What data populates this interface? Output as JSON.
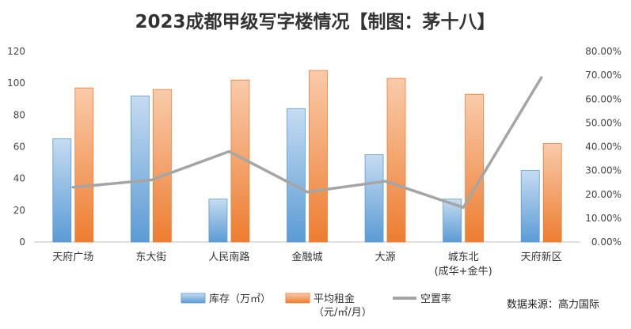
{
  "chart_data": {
    "type": "bar",
    "title": "2023成都甲级写字楼情况【制图：茅十八】",
    "categories": [
      "天府广场",
      "东大街",
      "人民南路",
      "金融城",
      "大源",
      "城东北",
      "天府新区"
    ],
    "category_sublabels": [
      "",
      "",
      "",
      "",
      "",
      "(成华+金牛)",
      ""
    ],
    "series": [
      {
        "name": "库存（万㎡）",
        "type": "bar",
        "axis": "left",
        "color": "#5b9bd5",
        "values": [
          65,
          92,
          27,
          84,
          55,
          27,
          45
        ]
      },
      {
        "name": "平均租金",
        "name_line2": "（元/㎡/月）",
        "type": "bar",
        "axis": "left",
        "color": "#ed7d31",
        "values": [
          97,
          96,
          102,
          108,
          103,
          93,
          62
        ]
      },
      {
        "name": "空置率",
        "type": "line",
        "axis": "right",
        "color": "#a5a5a5",
        "values": [
          23,
          26,
          38,
          21,
          25.5,
          14.5,
          69
        ]
      }
    ],
    "y_left": {
      "min": 0,
      "max": 120,
      "step": 20,
      "ticks": [
        "0",
        "20",
        "40",
        "60",
        "80",
        "100",
        "120"
      ]
    },
    "y_right": {
      "min": 0,
      "max": 80,
      "step": 10,
      "ticks": [
        "0.00%",
        "10.00%",
        "20.00%",
        "30.00%",
        "40.00%",
        "50.00%",
        "60.00%",
        "70.00%",
        "80.00%"
      ]
    },
    "grid": false,
    "legend_position": "bottom",
    "source": "数据来源：高力国际"
  }
}
